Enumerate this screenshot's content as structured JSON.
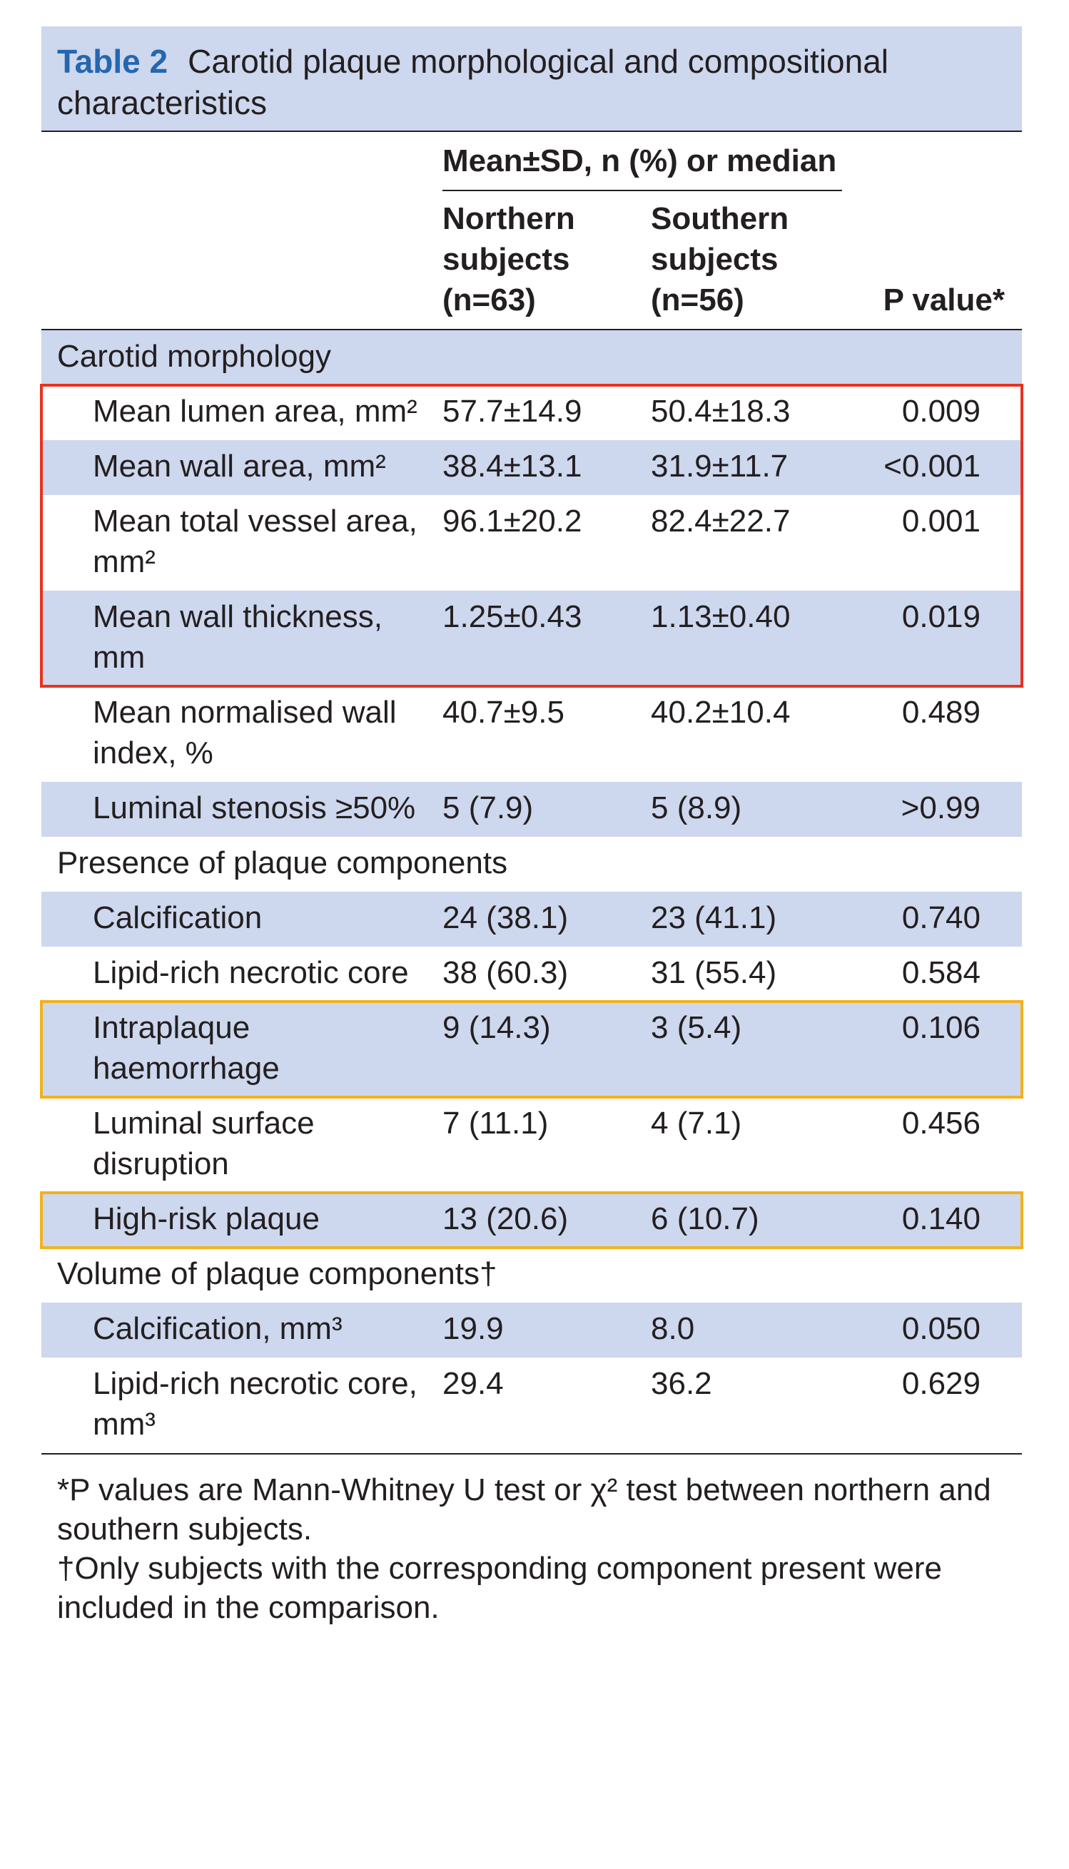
{
  "title": {
    "label": "Table 2",
    "text": "Carotid plaque morphological and compositional characteristics"
  },
  "header": {
    "group": "Mean±SD, n (%) or median",
    "columns": [
      "Northern subjects (n=63)",
      "Southern subjects (n=56)",
      "P value*"
    ]
  },
  "rows": [
    {
      "section": "Carotid morphology"
    },
    {
      "label": "Mean lumen area, mm²",
      "northern": "57.7±14.9",
      "southern": "50.4±18.3",
      "p": "0.009"
    },
    {
      "label": "Mean wall area, mm²",
      "northern": "38.4±13.1",
      "southern": "31.9±11.7",
      "p": "<0.001"
    },
    {
      "label": "Mean total vessel area, mm²",
      "northern": "96.1±20.2",
      "southern": "82.4±22.7",
      "p": "0.001"
    },
    {
      "label": "Mean wall thickness, mm",
      "northern": "1.25±0.43",
      "southern": "1.13±0.40",
      "p": "0.019"
    },
    {
      "label": "Mean normalised wall index, %",
      "northern": "40.7±9.5",
      "southern": "40.2±10.4",
      "p": "0.489"
    },
    {
      "label": "Luminal stenosis ≥50%",
      "northern": "5 (7.9)",
      "southern": "5 (8.9)",
      "p": ">0.99"
    },
    {
      "section": "Presence of plaque components"
    },
    {
      "label": "Calcification",
      "northern": "24 (38.1)",
      "southern": "23 (41.1)",
      "p": "0.740"
    },
    {
      "label": "Lipid-rich necrotic core",
      "northern": "38 (60.3)",
      "southern": "31 (55.4)",
      "p": "0.584"
    },
    {
      "label": "Intraplaque haemorrhage",
      "northern": "9 (14.3)",
      "southern": "3 (5.4)",
      "p": "0.106"
    },
    {
      "label": "Luminal surface disruption",
      "northern": "7 (11.1)",
      "southern": "4 (7.1)",
      "p": "0.456"
    },
    {
      "label": "High-risk plaque",
      "northern": "13 (20.6)",
      "southern": "6 (10.7)",
      "p": "0.140"
    },
    {
      "section": "Volume of plaque components†"
    },
    {
      "label": "Calcification, mm³",
      "northern": "19.9",
      "southern": "8.0",
      "p": "0.050"
    },
    {
      "label": "Lipid-rich necrotic core, mm³",
      "northern": "29.4",
      "southern": "36.2",
      "p": "0.629"
    }
  ],
  "footnotes": [
    "*P values are Mann-Whitney U test or χ² test between northern and southern subjects.",
    "†Only subjects with the corresponding component present were included in the comparison."
  ]
}
